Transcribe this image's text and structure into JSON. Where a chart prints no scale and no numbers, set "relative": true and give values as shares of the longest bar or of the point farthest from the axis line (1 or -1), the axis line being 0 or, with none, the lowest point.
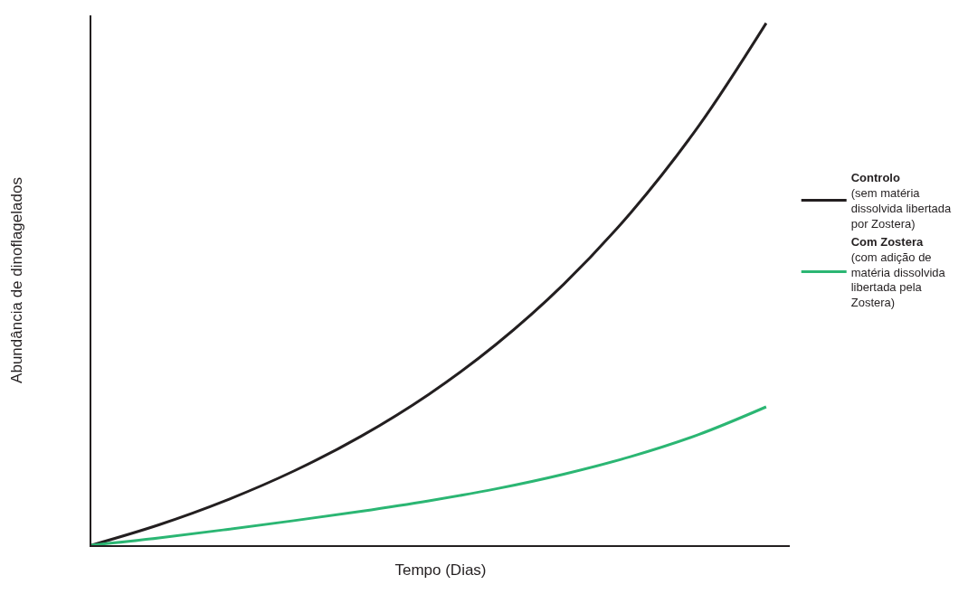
{
  "chart_data": {
    "type": "line",
    "relative": true,
    "xlabel": "Tempo (Dias)",
    "ylabel": "Abundância de dinoflagelados",
    "categories": [
      null,
      null,
      null,
      null,
      null,
      null,
      null,
      null,
      null,
      null,
      null
    ],
    "series": [
      {
        "name": "Controlo\n(sem matéria\ndissolvida libertada\npor Zostera)",
        "color": "#231f20",
        "values": [
          0,
          0.039,
          0.086,
          0.142,
          0.209,
          0.289,
          0.385,
          0.5,
          0.638,
          0.803,
          1
        ]
      },
      {
        "name": "Com Zostera\n(com adição de\nmatéria dissolvida\nlibertada pela\nZostera)",
        "color": "#2bb673",
        "values": [
          0,
          0.014,
          0.03,
          0.047,
          0.065,
          0.085,
          0.108,
          0.136,
          0.17,
          0.212,
          0.265
        ]
      }
    ],
    "legend": "right",
    "marker": "none",
    "line_style": "solid"
  }
}
